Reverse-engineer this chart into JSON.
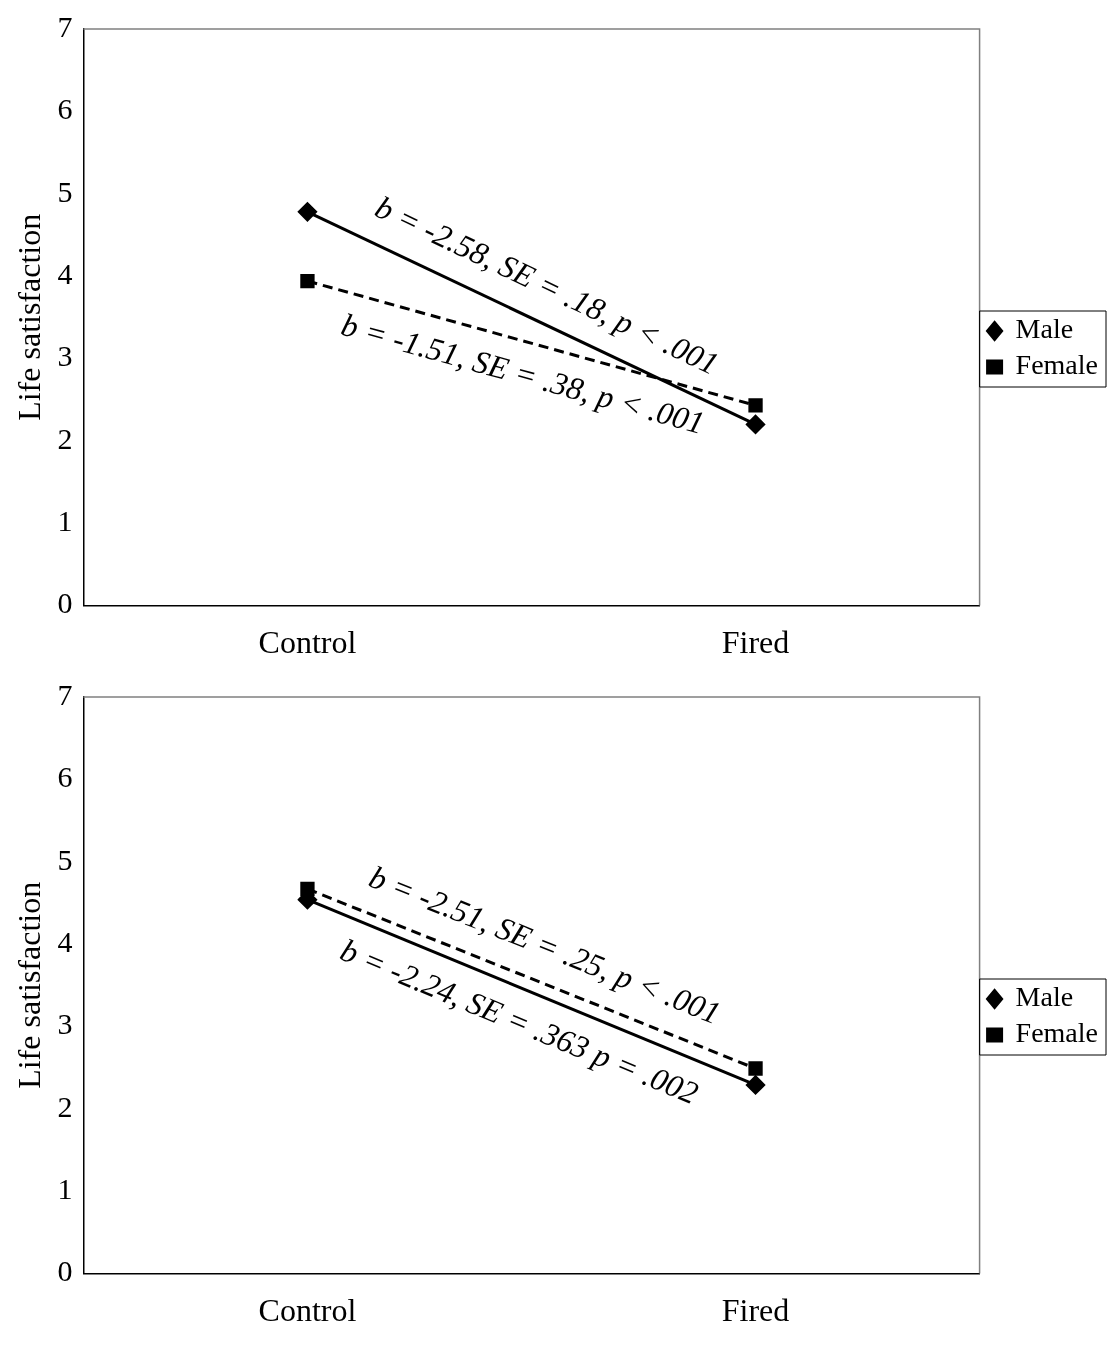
{
  "chart_data": [
    {
      "type": "line",
      "ylabel": "Life satisfaction",
      "categories": [
        "Control",
        "Fired"
      ],
      "ylim": [
        0,
        7
      ],
      "yticks": [
        0,
        1,
        2,
        3,
        4,
        5,
        6,
        7
      ],
      "legend": "right",
      "grid": false,
      "series": [
        {
          "name": "Male",
          "color": "#000000",
          "values": [
            4.78,
            2.2
          ],
          "marker": "diamond",
          "line_style": "solid"
        },
        {
          "name": "Female",
          "color": "#000000",
          "values": [
            3.94,
            2.43
          ],
          "marker": "square",
          "line_style": "dashed"
        }
      ],
      "annotations": [
        "b = -2.58, SE = .18, p < .001",
        "b = -1.51, SE = .38, p < .001"
      ]
    },
    {
      "type": "line",
      "ylabel": "Life satisfaction",
      "categories": [
        "Control",
        "Fired"
      ],
      "ylim": [
        0,
        7
      ],
      "yticks": [
        0,
        1,
        2,
        3,
        4,
        5,
        6,
        7
      ],
      "legend": "right",
      "grid": false,
      "series": [
        {
          "name": "Male",
          "color": "#000000",
          "values": [
            4.54,
            2.29
          ],
          "marker": "diamond",
          "line_style": "solid"
        },
        {
          "name": "Female",
          "color": "#000000",
          "values": [
            4.67,
            2.49
          ],
          "marker": "square",
          "line_style": "dashed"
        }
      ],
      "annotations": [
        "b = -2.51, SE = .25, p < .001",
        "b = -2.24, SE = .363 p = .002"
      ]
    }
  ]
}
